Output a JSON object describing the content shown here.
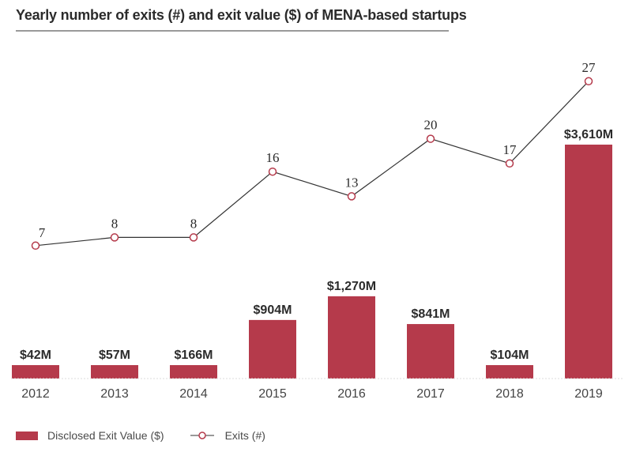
{
  "title": "Yearly number of exits (#) and exit value ($) of MENA-based startups",
  "colors": {
    "bar": "#b53a4b",
    "line": "#333333",
    "marker_stroke": "#b53a4b",
    "marker_fill": "#ffffff",
    "axis_label": "#444444",
    "value_label": "#2b2b2b"
  },
  "legend": {
    "bars_label": "Disclosed Exit Value ($)",
    "line_label": "Exits (#)"
  },
  "chart_data": {
    "type": "bar",
    "title": "Yearly number of exits (#) and exit value ($) of MENA-based startups",
    "categories": [
      "2012",
      "2013",
      "2014",
      "2015",
      "2016",
      "2017",
      "2018",
      "2019"
    ],
    "series": [
      {
        "name": "Disclosed Exit Value ($)",
        "type": "bar",
        "unit": "$M",
        "values": [
          42,
          57,
          166,
          904,
          1270,
          841,
          104,
          3610
        ],
        "labels": [
          "$42M",
          "$57M",
          "$166M",
          "$904M",
          "$1,270M",
          "$841M",
          "$104M",
          "$3,610M"
        ]
      },
      {
        "name": "Exits (#)",
        "type": "line",
        "values": [
          7,
          8,
          8,
          16,
          13,
          20,
          17,
          27
        ],
        "labels": [
          "7",
          "8",
          "8",
          "16",
          "13",
          "20",
          "17",
          "27"
        ]
      }
    ],
    "xlabel": "",
    "ylabel": "",
    "grid": false,
    "legend_position": "bottom-left"
  }
}
